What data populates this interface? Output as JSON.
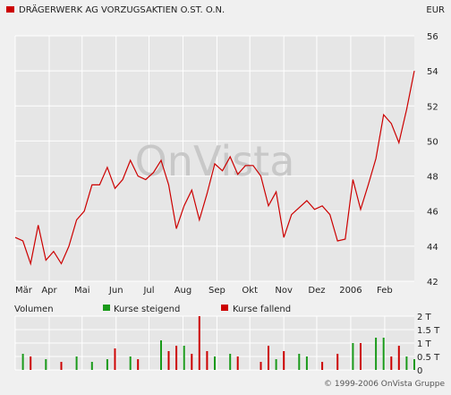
{
  "header": {
    "title": "DRÄGERWERK AG VORZUGSAKTIEN O.ST. O.N.",
    "currency": "EUR",
    "title_marker_color": "#cc0000"
  },
  "watermark": {
    "text": "OnVista"
  },
  "footer": {
    "copyright": "© 1999-2006 OnVista Gruppe"
  },
  "colors": {
    "price_line": "#cc0000",
    "grid": "#ffffff",
    "plot_background": "#e6e6e6",
    "volume_up": "#1a9a1a",
    "volume_down": "#cc0000",
    "watermark": "#c8c8c8"
  },
  "chart_data": [
    {
      "type": "line",
      "title": "DRÄGERWERK AG VORZUGSAKTIEN O.ST. O.N.",
      "unit": "EUR",
      "ylim": [
        42,
        56
      ],
      "y_ticks": [
        42,
        44,
        46,
        48,
        50,
        52,
        54,
        56
      ],
      "x_tick_labels": [
        "Mär",
        "Apr",
        "Mai",
        "Jun",
        "Jul",
        "Aug",
        "Sep",
        "Okt",
        "Nov",
        "Dez",
        "2006",
        "Feb"
      ],
      "grid": true,
      "series": [
        {
          "x": [
            "2005-03-01",
            "2005-03-08",
            "2005-03-15",
            "2005-03-22",
            "2005-03-29",
            "2005-04-05",
            "2005-04-12",
            "2005-04-19",
            "2005-04-26",
            "2005-05-03",
            "2005-05-10",
            "2005-05-17",
            "2005-05-24",
            "2005-05-31",
            "2005-06-07",
            "2005-06-14",
            "2005-06-21",
            "2005-06-28",
            "2005-07-05",
            "2005-07-12",
            "2005-07-19",
            "2005-07-26",
            "2005-08-02",
            "2005-08-09",
            "2005-08-16",
            "2005-08-23",
            "2005-08-30",
            "2005-09-06",
            "2005-09-13",
            "2005-09-20",
            "2005-09-27",
            "2005-10-04",
            "2005-10-11",
            "2005-10-18",
            "2005-10-25",
            "2005-11-01",
            "2005-11-08",
            "2005-11-15",
            "2005-11-22",
            "2005-11-29",
            "2005-12-06",
            "2005-12-13",
            "2005-12-20",
            "2005-12-27",
            "2006-01-03",
            "2006-01-10",
            "2006-01-17",
            "2006-01-24",
            "2006-01-31",
            "2006-02-07",
            "2006-02-14",
            "2006-02-21",
            "2006-02-28"
          ],
          "values": [
            44.5,
            44.3,
            43.0,
            45.2,
            43.2,
            43.7,
            43.0,
            44.0,
            45.5,
            46.0,
            47.5,
            47.5,
            48.5,
            47.3,
            47.8,
            48.9,
            48.0,
            47.8,
            48.2,
            48.9,
            47.5,
            45.0,
            46.3,
            47.2,
            45.5,
            47.0,
            48.7,
            48.3,
            49.1,
            48.1,
            48.6,
            48.6,
            48.0,
            46.3,
            47.1,
            44.5,
            45.8,
            46.2,
            46.6,
            46.1,
            46.3,
            45.8,
            44.3,
            44.4,
            47.8,
            46.1,
            47.5,
            49.0,
            51.5,
            51.0,
            49.9,
            51.8,
            54.0
          ]
        }
      ]
    },
    {
      "type": "bar",
      "title": "Volumen",
      "ylim": [
        0,
        2
      ],
      "y_tick_labels": [
        "0",
        "0.5 T",
        "1 T",
        "1.5 T",
        "2 T"
      ],
      "legend": [
        "Kurse steigend",
        "Kurse fallend"
      ],
      "legend_placement": "top",
      "series": [
        {
          "name": "Kurse steigend",
          "x": [
            "2005-03-08",
            "2005-03-29",
            "2005-04-26",
            "2005-05-10",
            "2005-05-24",
            "2005-06-14",
            "2005-07-12",
            "2005-08-02",
            "2005-08-30",
            "2005-09-13",
            "2005-10-25",
            "2005-11-15",
            "2005-11-22",
            "2006-01-03",
            "2006-01-24",
            "2006-01-31",
            "2006-02-21",
            "2006-02-28"
          ],
          "values": [
            0.6,
            0.4,
            0.5,
            0.3,
            0.4,
            0.5,
            1.1,
            0.9,
            0.5,
            0.6,
            0.4,
            0.6,
            0.5,
            1.0,
            1.2,
            1.2,
            0.5,
            0.4
          ]
        },
        {
          "name": "Kurse fallend",
          "x": [
            "2005-03-15",
            "2005-04-12",
            "2005-05-31",
            "2005-06-21",
            "2005-07-19",
            "2005-07-26",
            "2005-08-09",
            "2005-08-16",
            "2005-08-23",
            "2005-09-20",
            "2005-10-11",
            "2005-10-18",
            "2005-11-01",
            "2005-12-06",
            "2005-12-20",
            "2006-01-10",
            "2006-02-07",
            "2006-02-14"
          ],
          "values": [
            0.5,
            0.3,
            0.8,
            0.4,
            0.7,
            0.9,
            0.6,
            2.0,
            0.7,
            0.5,
            0.3,
            0.9,
            0.7,
            0.3,
            0.6,
            1.0,
            0.5,
            0.9
          ]
        }
      ]
    }
  ]
}
